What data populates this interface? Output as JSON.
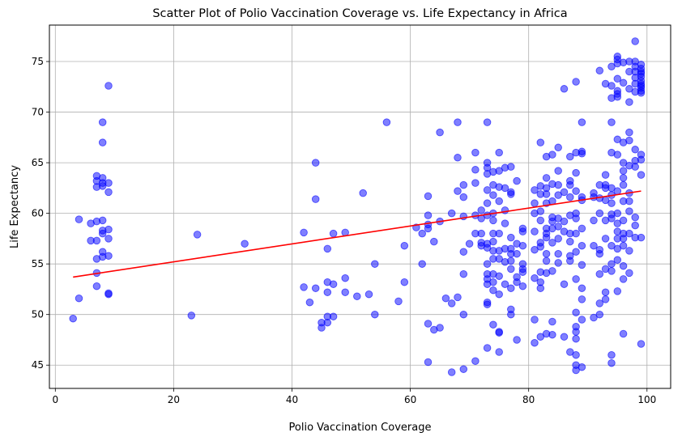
{
  "chart_data": {
    "type": "scatter",
    "title": "Scatter Plot of Polio Vaccination Coverage vs. Life Expectancy in Africa",
    "xlabel": "Polio Vaccination Coverage",
    "ylabel": "Life Expectancy",
    "xlim": [
      -1,
      104
    ],
    "ylim": [
      42.7,
      78.6
    ],
    "xticks": [
      0,
      20,
      40,
      60,
      80,
      100
    ],
    "yticks": [
      45,
      50,
      55,
      60,
      65,
      70,
      75
    ],
    "grid": true,
    "point_color": "#0000ff",
    "line_color": "#ff0000",
    "trend_line": {
      "x": [
        3,
        99
      ],
      "y": [
        53.7,
        62.2
      ]
    },
    "points": [
      [
        3,
        49.6
      ],
      [
        4,
        51.6
      ],
      [
        4,
        59.4
      ],
      [
        6,
        59.0
      ],
      [
        6,
        57.3
      ],
      [
        7,
        63.7
      ],
      [
        7,
        63.2
      ],
      [
        7,
        62.6
      ],
      [
        7,
        59.2
      ],
      [
        7,
        57.3
      ],
      [
        7,
        55.5
      ],
      [
        7,
        54.1
      ],
      [
        7,
        52.8
      ],
      [
        8,
        69.0
      ],
      [
        8,
        67.0
      ],
      [
        8,
        63.5
      ],
      [
        8,
        63.0
      ],
      [
        8,
        62.7
      ],
      [
        8,
        59.3
      ],
      [
        8,
        58.3
      ],
      [
        8,
        58.0
      ],
      [
        8,
        56.2
      ],
      [
        8,
        55.7
      ],
      [
        9,
        72.6
      ],
      [
        9,
        63.0
      ],
      [
        9,
        62.1
      ],
      [
        9,
        58.4
      ],
      [
        9,
        57.5
      ],
      [
        9,
        55.8
      ],
      [
        9,
        52.1
      ],
      [
        9,
        52.0
      ],
      [
        23,
        49.9
      ],
      [
        24,
        57.9
      ],
      [
        32,
        57.0
      ],
      [
        42,
        58.1
      ],
      [
        42,
        52.7
      ],
      [
        43,
        51.2
      ],
      [
        44,
        65.0
      ],
      [
        44,
        61.4
      ],
      [
        44,
        52.6
      ],
      [
        45,
        49.2
      ],
      [
        45,
        48.7
      ],
      [
        46,
        56.5
      ],
      [
        46,
        53.2
      ],
      [
        46,
        52.2
      ],
      [
        46,
        49.8
      ],
      [
        46,
        49.2
      ],
      [
        47,
        58.0
      ],
      [
        47,
        53.0
      ],
      [
        47,
        49.8
      ],
      [
        49,
        58.1
      ],
      [
        49,
        53.6
      ],
      [
        49,
        52.2
      ],
      [
        51,
        51.8
      ],
      [
        52,
        62.0
      ],
      [
        53,
        52.0
      ],
      [
        54,
        55.0
      ],
      [
        54,
        50.0
      ],
      [
        56,
        69.0
      ],
      [
        58,
        51.3
      ],
      [
        59,
        56.8
      ],
      [
        59,
        53.2
      ],
      [
        61,
        58.6
      ],
      [
        62,
        58.0
      ],
      [
        62,
        55.0
      ],
      [
        63,
        61.7
      ],
      [
        63,
        59.8
      ],
      [
        63,
        58.9
      ],
      [
        63,
        58.5
      ],
      [
        63,
        49.1
      ],
      [
        63,
        45.3
      ],
      [
        64,
        57.2
      ],
      [
        64,
        48.5
      ],
      [
        65,
        68.0
      ],
      [
        65,
        59.2
      ],
      [
        65,
        48.7
      ],
      [
        66,
        51.6
      ],
      [
        67,
        60.0
      ],
      [
        67,
        51.1
      ],
      [
        67,
        44.3
      ],
      [
        68,
        69.0
      ],
      [
        68,
        65.5
      ],
      [
        68,
        62.2
      ],
      [
        68,
        51.7
      ],
      [
        69,
        62.8
      ],
      [
        69,
        61.6
      ],
      [
        69,
        59.7
      ],
      [
        69,
        56.2
      ],
      [
        69,
        54.0
      ],
      [
        69,
        50.0
      ],
      [
        69,
        44.6
      ],
      [
        70,
        57.0
      ],
      [
        71,
        66.0
      ],
      [
        71,
        64.3
      ],
      [
        71,
        63.0
      ],
      [
        71,
        59.8
      ],
      [
        71,
        58.0
      ],
      [
        71,
        45.4
      ],
      [
        72,
        60.3
      ],
      [
        72,
        59.5
      ],
      [
        72,
        58.0
      ],
      [
        72,
        57.1
      ],
      [
        72,
        56.8
      ],
      [
        73,
        69.0
      ],
      [
        73,
        65.0
      ],
      [
        73,
        64.5
      ],
      [
        73,
        63.9
      ],
      [
        73,
        62.3
      ],
      [
        73,
        61.0
      ],
      [
        73,
        59.8
      ],
      [
        73,
        57.0
      ],
      [
        73,
        56.6
      ],
      [
        73,
        55.0
      ],
      [
        73,
        54.0
      ],
      [
        73,
        53.5
      ],
      [
        73,
        53.0
      ],
      [
        73,
        51.2
      ],
      [
        73,
        51.0
      ],
      [
        73,
        46.7
      ],
      [
        74,
        64.1
      ],
      [
        74,
        62.8
      ],
      [
        74,
        61.8
      ],
      [
        74,
        60.0
      ],
      [
        74,
        59.3
      ],
      [
        74,
        58.0
      ],
      [
        74,
        57.2
      ],
      [
        74,
        56.3
      ],
      [
        74,
        55.5
      ],
      [
        74,
        54.0
      ],
      [
        74,
        53.2
      ],
      [
        74,
        52.4
      ],
      [
        74,
        49.0
      ],
      [
        75,
        66.0
      ],
      [
        75,
        64.2
      ],
      [
        75,
        62.6
      ],
      [
        75,
        61.2
      ],
      [
        75,
        58.0
      ],
      [
        75,
        56.3
      ],
      [
        75,
        55.5
      ],
      [
        75,
        53.8
      ],
      [
        75,
        52.0
      ],
      [
        75,
        48.3
      ],
      [
        75,
        48.2
      ],
      [
        75,
        46.3
      ],
      [
        76,
        64.5
      ],
      [
        76,
        62.5
      ],
      [
        76,
        60.3
      ],
      [
        76,
        59.0
      ],
      [
        76,
        56.5
      ],
      [
        76,
        55.2
      ],
      [
        76,
        53.0
      ],
      [
        77,
        64.6
      ],
      [
        77,
        62.1
      ],
      [
        77,
        61.9
      ],
      [
        77,
        57.6
      ],
      [
        77,
        56.5
      ],
      [
        77,
        56.0
      ],
      [
        77,
        55.3
      ],
      [
        77,
        54.5
      ],
      [
        77,
        52.6
      ],
      [
        77,
        50.5
      ],
      [
        77,
        50.0
      ],
      [
        78,
        63.2
      ],
      [
        78,
        57.0
      ],
      [
        78,
        56.0
      ],
      [
        78,
        53.7
      ],
      [
        78,
        53.2
      ],
      [
        78,
        47.5
      ],
      [
        79,
        58.5
      ],
      [
        79,
        58.2
      ],
      [
        79,
        56.8
      ],
      [
        79,
        55.0
      ],
      [
        79,
        54.5
      ],
      [
        79,
        54.2
      ],
      [
        79,
        52.8
      ],
      [
        81,
        62.3
      ],
      [
        81,
        61.0
      ],
      [
        81,
        60.0
      ],
      [
        81,
        58.2
      ],
      [
        81,
        56.4
      ],
      [
        81,
        53.6
      ],
      [
        81,
        49.5
      ],
      [
        81,
        47.2
      ],
      [
        82,
        67.0
      ],
      [
        82,
        62.7
      ],
      [
        82,
        61.9
      ],
      [
        82,
        60.2
      ],
      [
        82,
        59.3
      ],
      [
        82,
        57.1
      ],
      [
        82,
        56.7
      ],
      [
        82,
        54.2
      ],
      [
        82,
        53.2
      ],
      [
        82,
        52.6
      ],
      [
        82,
        47.8
      ],
      [
        83,
        65.6
      ],
      [
        83,
        63.5
      ],
      [
        83,
        62.5
      ],
      [
        83,
        61.9
      ],
      [
        83,
        61.0
      ],
      [
        83,
        58.5
      ],
      [
        83,
        58.0
      ],
      [
        83,
        57.6
      ],
      [
        83,
        56.0
      ],
      [
        83,
        55.3
      ],
      [
        83,
        54.1
      ],
      [
        83,
        48.1
      ],
      [
        84,
        65.8
      ],
      [
        84,
        62.9
      ],
      [
        84,
        61.2
      ],
      [
        84,
        59.6
      ],
      [
        84,
        59.2
      ],
      [
        84,
        58.5
      ],
      [
        84,
        57.1
      ],
      [
        84,
        54.3
      ],
      [
        84,
        49.3
      ],
      [
        84,
        48.0
      ],
      [
        85,
        66.5
      ],
      [
        85,
        64.2
      ],
      [
        85,
        62.8
      ],
      [
        85,
        61.8
      ],
      [
        85,
        59.5
      ],
      [
        85,
        58.7
      ],
      [
        85,
        57.5
      ],
      [
        85,
        56.0
      ],
      [
        85,
        55.1
      ],
      [
        86,
        72.3
      ],
      [
        86,
        62.1
      ],
      [
        86,
        59.2
      ],
      [
        86,
        58.2
      ],
      [
        86,
        53.0
      ],
      [
        86,
        47.8
      ],
      [
        87,
        65.6
      ],
      [
        87,
        63.2
      ],
      [
        87,
        62.8
      ],
      [
        87,
        61.6
      ],
      [
        87,
        59.8
      ],
      [
        87,
        58.0
      ],
      [
        87,
        57.2
      ],
      [
        87,
        55.8
      ],
      [
        87,
        55.3
      ],
      [
        87,
        46.3
      ],
      [
        88,
        73.0
      ],
      [
        88,
        66.0
      ],
      [
        88,
        64.0
      ],
      [
        88,
        62.2
      ],
      [
        88,
        60.0
      ],
      [
        88,
        59.5
      ],
      [
        88,
        58.0
      ],
      [
        88,
        56.2
      ],
      [
        88,
        53.5
      ],
      [
        88,
        50.2
      ],
      [
        88,
        48.8
      ],
      [
        88,
        48.3
      ],
      [
        88,
        47.6
      ],
      [
        88,
        46.0
      ],
      [
        88,
        45.0
      ],
      [
        88,
        44.5
      ],
      [
        89,
        69.0
      ],
      [
        89,
        66.1
      ],
      [
        89,
        65.9
      ],
      [
        89,
        61.6
      ],
      [
        89,
        61.3
      ],
      [
        89,
        58.5
      ],
      [
        89,
        56.8
      ],
      [
        89,
        54.9
      ],
      [
        89,
        52.6
      ],
      [
        89,
        51.5
      ],
      [
        89,
        49.5
      ],
      [
        89,
        44.8
      ],
      [
        91,
        62.0
      ],
      [
        91,
        61.6
      ],
      [
        91,
        59.3
      ],
      [
        91,
        56.8
      ],
      [
        91,
        49.7
      ],
      [
        92,
        74.1
      ],
      [
        92,
        62.8
      ],
      [
        92,
        61.5
      ],
      [
        92,
        60.0
      ],
      [
        92,
        56.4
      ],
      [
        92,
        56.0
      ],
      [
        92,
        54.0
      ],
      [
        92,
        51.1
      ],
      [
        92,
        50.0
      ],
      [
        93,
        72.8
      ],
      [
        93,
        63.8
      ],
      [
        93,
        62.8
      ],
      [
        93,
        62.5
      ],
      [
        93,
        61.3
      ],
      [
        93,
        59.3
      ],
      [
        93,
        57.5
      ],
      [
        93,
        54.5
      ],
      [
        93,
        52.2
      ],
      [
        93,
        51.5
      ],
      [
        94,
        74.5
      ],
      [
        94,
        72.6
      ],
      [
        94,
        71.4
      ],
      [
        94,
        69.0
      ],
      [
        94,
        66.0
      ],
      [
        94,
        62.5
      ],
      [
        94,
        61.8
      ],
      [
        94,
        61.0
      ],
      [
        94,
        59.9
      ],
      [
        94,
        59.5
      ],
      [
        94,
        56.8
      ],
      [
        94,
        55.0
      ],
      [
        94,
        54.3
      ],
      [
        94,
        46.0
      ],
      [
        94,
        45.2
      ],
      [
        95,
        75.5
      ],
      [
        95,
        75.2
      ],
      [
        95,
        74.8
      ],
      [
        95,
        73.3
      ],
      [
        95,
        72.1
      ],
      [
        95,
        71.8
      ],
      [
        95,
        71.5
      ],
      [
        95,
        67.3
      ],
      [
        95,
        65.8
      ],
      [
        95,
        62.2
      ],
      [
        95,
        60.0
      ],
      [
        95,
        59.0
      ],
      [
        95,
        58.2
      ],
      [
        95,
        57.5
      ],
      [
        95,
        56.5
      ],
      [
        95,
        55.4
      ],
      [
        95,
        52.3
      ],
      [
        96,
        74.9
      ],
      [
        96,
        72.9
      ],
      [
        96,
        67.0
      ],
      [
        96,
        65.0
      ],
      [
        96,
        64.2
      ],
      [
        96,
        63.5
      ],
      [
        96,
        62.8
      ],
      [
        96,
        61.2
      ],
      [
        96,
        59.3
      ],
      [
        96,
        58.0
      ],
      [
        96,
        57.5
      ],
      [
        96,
        56.8
      ],
      [
        96,
        54.8
      ],
      [
        96,
        53.5
      ],
      [
        96,
        48.1
      ],
      [
        97,
        75.0
      ],
      [
        97,
        74.0
      ],
      [
        97,
        72.3
      ],
      [
        97,
        71.0
      ],
      [
        97,
        68.0
      ],
      [
        97,
        67.2
      ],
      [
        97,
        64.7
      ],
      [
        97,
        62.0
      ],
      [
        97,
        61.2
      ],
      [
        97,
        60.2
      ],
      [
        97,
        58.0
      ],
      [
        97,
        56.3
      ],
      [
        97,
        54.1
      ],
      [
        98,
        77.0
      ],
      [
        98,
        75.0
      ],
      [
        98,
        74.5
      ],
      [
        98,
        74.0
      ],
      [
        98,
        73.4
      ],
      [
        98,
        72.8
      ],
      [
        98,
        72.0
      ],
      [
        98,
        66.3
      ],
      [
        98,
        65.2
      ],
      [
        98,
        64.6
      ],
      [
        98,
        59.6
      ],
      [
        98,
        58.8
      ],
      [
        98,
        57.6
      ],
      [
        99,
        74.7
      ],
      [
        99,
        74.3
      ],
      [
        99,
        74.0
      ],
      [
        99,
        73.8
      ],
      [
        99,
        73.5
      ],
      [
        99,
        73.1
      ],
      [
        99,
        72.8
      ],
      [
        99,
        72.6
      ],
      [
        99,
        72.4
      ],
      [
        99,
        72.1
      ],
      [
        99,
        71.9
      ],
      [
        99,
        65.8
      ],
      [
        99,
        65.3
      ],
      [
        99,
        63.8
      ],
      [
        99,
        57.6
      ],
      [
        99,
        47.1
      ]
    ]
  }
}
